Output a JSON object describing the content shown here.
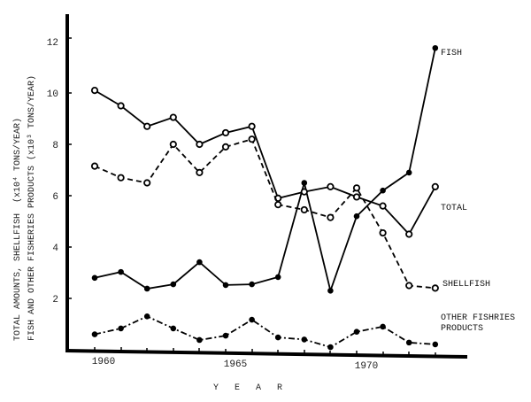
{
  "chart_data": {
    "type": "line",
    "title": "",
    "xlabel": "Y E A R",
    "ylabel_lines": [
      "TOTAL AMOUNTS, SHELLFISH (x10⁴ TONS/YEAR)",
      "FISH AND OTHER FISHERIES PRODUCTS (x10³ TONS/YEAR)"
    ],
    "x": [
      1960,
      1961,
      1962,
      1963,
      1964,
      1965,
      1966,
      1967,
      1968,
      1969,
      1970,
      1971,
      1972,
      1973
    ],
    "x_tick_labels": [
      "1960",
      "1965",
      "1970"
    ],
    "y_ticks": [
      2,
      4,
      6,
      8,
      10,
      12
    ],
    "ylim": [
      0,
      13
    ],
    "xlim": [
      1959.5,
      1974.2
    ],
    "grid": false,
    "legend_position": "inline-right",
    "series": [
      {
        "name": "FISH",
        "style": "solid",
        "marker": "filled-circle",
        "values": [
          2.8,
          3.03,
          2.38,
          2.55,
          3.41,
          2.52,
          2.55,
          2.83,
          6.5,
          2.3,
          5.2,
          6.2,
          6.9,
          11.75
        ]
      },
      {
        "name": "TOTAL",
        "style": "solid",
        "marker": "open-circle",
        "values": [
          10.1,
          9.5,
          8.7,
          9.05,
          8.0,
          8.45,
          8.7,
          5.9,
          6.15,
          6.35,
          5.95,
          5.6,
          4.5,
          6.35
        ]
      },
      {
        "name": "SHELLFISH",
        "style": "dashed",
        "marker": "open-circle",
        "values": [
          7.15,
          6.7,
          6.5,
          8.0,
          6.9,
          7.9,
          8.2,
          5.65,
          5.45,
          5.15,
          6.3,
          4.55,
          2.5,
          2.4
        ]
      },
      {
        "name": "OTHER FISHRIES PRODUCTS",
        "style": "dash-dot",
        "marker": "filled-circle",
        "values": [
          0.6,
          0.83,
          1.3,
          0.83,
          0.38,
          0.55,
          1.17,
          0.48,
          0.4,
          0.1,
          0.7,
          0.9,
          0.28,
          0.21
        ]
      }
    ],
    "annotations": [
      {
        "text": "FISH",
        "series": "FISH"
      },
      {
        "text": "TOTAL",
        "series": "TOTAL"
      },
      {
        "text": "SHELLFISH",
        "series": "SHELLFISH"
      },
      {
        "text": [
          "OTHER FISHRIES",
          "PRODUCTS"
        ],
        "series": "OTHER FISHRIES PRODUCTS"
      }
    ]
  },
  "labels": {
    "fish": "FISH",
    "total": "TOTAL",
    "shellfish": "SHELLFISH",
    "other_line1": "OTHER FISHRIES",
    "other_line2": "PRODUCTS",
    "x_axis_title": "Y   E   A   R",
    "y_axis_title_line1": "TOTAL AMOUNTS, SHELLFISH  (x10⁴ TONS/YEAR)",
    "y_axis_title_line2": "FISH AND OTHER FISHERIES PRODUCTS (x10³ TONS/YEAR)",
    "x_ticks": {
      "t1960": "1960",
      "t1965": "1965",
      "t1970": "1970"
    },
    "y_ticks": {
      "t2": "2",
      "t4": "4",
      "t6": "6",
      "t8": "8",
      "t10": "10",
      "t12": "12"
    }
  }
}
